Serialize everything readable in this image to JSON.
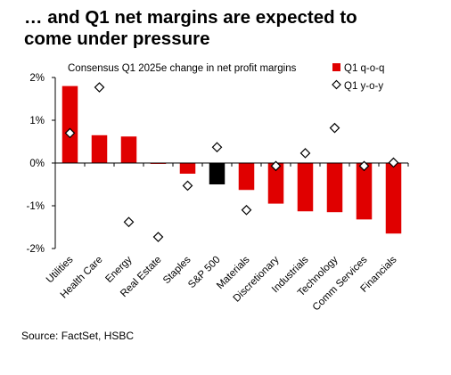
{
  "title_lines": [
    "… and Q1 net margins are expected to",
    "come under pressure"
  ],
  "source": "Source: FactSet, HSBC",
  "chart_data": {
    "type": "bar",
    "subtitle": "Consensus Q1 2025e change in net profit margins",
    "categories": [
      "Utilities",
      "Health Care",
      "Energy",
      "Real Estate",
      "Staples",
      "S&P 500",
      "Materials",
      "Discretionary",
      "Industrials",
      "Technology",
      "Comm Services",
      "Financials"
    ],
    "series": [
      {
        "name": "Q1 q-o-q",
        "type": "bar",
        "color": "#e00000",
        "highlight": {
          "category": "S&P 500",
          "color": "#000000"
        },
        "values": [
          1.8,
          0.65,
          0.62,
          -0.02,
          -0.25,
          -0.5,
          -0.63,
          -0.95,
          -1.13,
          -1.15,
          -1.32,
          -1.65
        ]
      },
      {
        "name": "Q1 y-o-y",
        "type": "scatter",
        "marker": "diamond",
        "values": [
          0.7,
          1.77,
          -1.38,
          -1.73,
          -0.53,
          0.37,
          -1.1,
          -0.07,
          0.23,
          0.82,
          -0.07,
          0.01
        ]
      }
    ],
    "y_ticks": [
      "2%",
      "1%",
      "0%",
      "-1%",
      "-2%"
    ],
    "ylim": [
      -2,
      2
    ],
    "grid": false,
    "legend_position": "top-right"
  }
}
